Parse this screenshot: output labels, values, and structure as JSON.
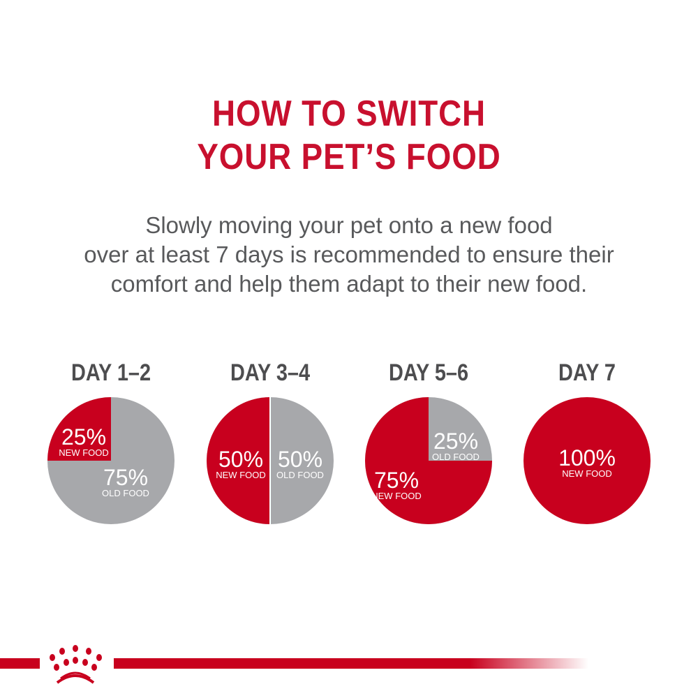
{
  "title": [
    "HOW TO SWITCH",
    "YOUR PET’S FOOD"
  ],
  "subtitle": [
    "Slowly moving your pet onto a new food",
    "over at least 7 days is recommended to ensure their",
    "comfort and help them adapt to their new food."
  ],
  "colors": {
    "new_food": "#c8001e",
    "old_food": "#a7a8ab",
    "title": "#c8102e",
    "text": "#58595b"
  },
  "logo": "royal-canin-crown-logo",
  "chart_data": [
    {
      "type": "pie",
      "title": "DAY 1–2",
      "slices": [
        {
          "label": "NEW FOOD",
          "value": 25,
          "text": "25%"
        },
        {
          "label": "OLD FOOD",
          "value": 75,
          "text": "75%"
        }
      ]
    },
    {
      "type": "pie",
      "title": "DAY 3–4",
      "slices": [
        {
          "label": "NEW FOOD",
          "value": 50,
          "text": "50%"
        },
        {
          "label": "OLD FOOD",
          "value": 50,
          "text": "50%"
        }
      ]
    },
    {
      "type": "pie",
      "title": "DAY 5–6",
      "slices": [
        {
          "label": "NEW FOOD",
          "value": 75,
          "text": "75%"
        },
        {
          "label": "OLD FOOD",
          "value": 25,
          "text": "25%"
        }
      ]
    },
    {
      "type": "pie",
      "title": "DAY 7",
      "slices": [
        {
          "label": "NEW FOOD",
          "value": 100,
          "text": "100%"
        }
      ]
    }
  ]
}
